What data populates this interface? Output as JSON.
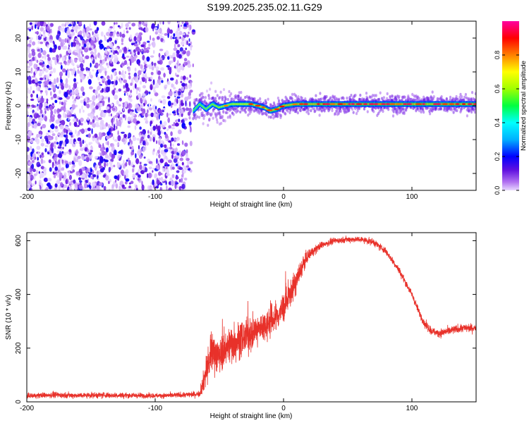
{
  "title": "S199.2025.235.02.11.G29",
  "colors": {
    "snr_line": "#e8312a",
    "cool_dots": "#7a1ee0",
    "frame": "#000000",
    "background": "#ffffff"
  },
  "chart_data": [
    {
      "type": "heatmap",
      "name": "spectrogram",
      "xlabel": "Height of straight line (km)",
      "ylabel": "Frequency (Hz)",
      "xlim": [
        -200,
        150
      ],
      "ylim": [
        -25,
        25
      ],
      "xticks": [
        -200,
        -100,
        0,
        100
      ],
      "xtick_labels": [
        "-200",
        "-100",
        "0",
        "100"
      ],
      "yticks": [
        -20,
        -10,
        0,
        10,
        20
      ],
      "ytick_labels": [
        "-20",
        "-10",
        "0",
        "10",
        "20"
      ],
      "noise_region_x": [
        -200,
        -72
      ],
      "signal_ridge": {
        "x": [
          -70,
          -65,
          -60,
          -55,
          -50,
          -45,
          -40,
          -35,
          -30,
          -25,
          -20,
          -15,
          -10,
          -5,
          0,
          10,
          25,
          50,
          75,
          100,
          125,
          150
        ],
        "freq": [
          -1.5,
          0.5,
          -1.0,
          0.5,
          -0.5,
          0.0,
          0.5,
          0.5,
          0.5,
          0.5,
          0.0,
          -0.5,
          -1.5,
          -1.0,
          0.0,
          0.5,
          0.5,
          0.5,
          0.5,
          0.5,
          0.5,
          0.5
        ],
        "peak_amplitude": 0.95
      },
      "colorbar": {
        "label": "Normalized spectral amplitude",
        "range": [
          0.0,
          1.0
        ],
        "ticks": [
          0.0,
          0.2,
          0.4,
          0.6,
          0.8
        ],
        "tick_labels": [
          "0.0",
          "0.2",
          "0.4",
          "0.6",
          "0.8"
        ]
      }
    },
    {
      "type": "line",
      "name": "snr",
      "xlabel": "Height of straight line (km)",
      "ylabel": "SNR (10 * v/v)",
      "xlim": [
        -200,
        150
      ],
      "ylim": [
        0,
        630
      ],
      "xticks": [
        -200,
        -100,
        0,
        100
      ],
      "xtick_labels": [
        "-200",
        "-100",
        "0",
        "100"
      ],
      "yticks": [
        0,
        200,
        400,
        600
      ],
      "ytick_labels": [
        "0",
        "200",
        "400",
        "600"
      ],
      "series": [
        {
          "name": "SNR",
          "x": [
            -200,
            -180,
            -160,
            -140,
            -120,
            -100,
            -80,
            -65,
            -60,
            -55,
            -50,
            -45,
            -40,
            -35,
            -30,
            -25,
            -20,
            -15,
            -10,
            -5,
            0,
            5,
            10,
            15,
            20,
            30,
            40,
            50,
            60,
            70,
            80,
            90,
            100,
            105,
            110,
            115,
            120,
            130,
            140,
            150
          ],
          "mean": [
            22,
            26,
            24,
            25,
            24,
            23,
            25,
            30,
            120,
            190,
            170,
            200,
            220,
            230,
            240,
            255,
            270,
            285,
            300,
            320,
            350,
            400,
            450,
            510,
            550,
            585,
            600,
            605,
            605,
            595,
            560,
            490,
            400,
            340,
            290,
            265,
            255,
            265,
            275,
            275
          ],
          "noise": [
            8,
            10,
            9,
            10,
            9,
            8,
            9,
            10,
            60,
            70,
            55,
            60,
            70,
            60,
            55,
            55,
            55,
            50,
            55,
            50,
            50,
            45,
            40,
            28,
            18,
            12,
            10,
            10,
            10,
            12,
            12,
            12,
            12,
            12,
            14,
            14,
            14,
            14,
            14,
            14
          ]
        }
      ]
    }
  ]
}
